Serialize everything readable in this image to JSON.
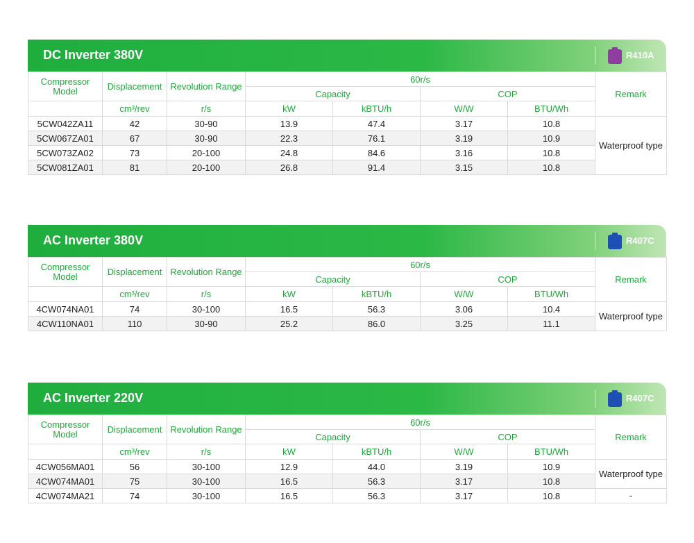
{
  "tables": [
    {
      "title": "DC Inverter 380V",
      "refrigerant": "R410A",
      "refrigerant_color": "#8e3e9e",
      "headers": {
        "compressor_model": "Compressor Model",
        "displacement": "Displacement",
        "revolution_range": "Revolution Range",
        "speed": "60r/s",
        "capacity": "Capacity",
        "cop": "COP",
        "remark": "Remark",
        "units": [
          "cm³/rev",
          "r/s",
          "kW",
          "kBTU/h",
          "W/W",
          "BTU/Wh"
        ]
      },
      "rows": [
        [
          "5CW042ZA11",
          "42",
          "30-90",
          "13.9",
          "47.4",
          "3.17",
          "10.8"
        ],
        [
          "5CW067ZA01",
          "67",
          "30-90",
          "22.3",
          "76.1",
          "3.19",
          "10.9"
        ],
        [
          "5CW073ZA02",
          "73",
          "20-100",
          "24.8",
          "84.6",
          "3.16",
          "10.8"
        ],
        [
          "5CW081ZA01",
          "81",
          "20-100",
          "26.8",
          "91.4",
          "3.15",
          "10.8"
        ]
      ],
      "remarks": [
        "Waterproof type"
      ]
    },
    {
      "title": "AC Inverter 380V",
      "refrigerant": "R407C",
      "refrigerant_color": "#1e4fb4",
      "headers": {
        "compressor_model": "Compressor Model",
        "displacement": "Displacement",
        "revolution_range": "Revolution Range",
        "speed": "60r/s",
        "capacity": "Capacity",
        "cop": "COP",
        "remark": "Remark",
        "units": [
          "cm³/rev",
          "r/s",
          "kW",
          "kBTU/h",
          "W/W",
          "BTU/Wh"
        ]
      },
      "rows": [
        [
          "4CW074NA01",
          "74",
          "30-100",
          "16.5",
          "56.3",
          "3.06",
          "10.4"
        ],
        [
          "4CW110NA01",
          "110",
          "30-90",
          "25.2",
          "86.0",
          "3.25",
          "11.1"
        ]
      ],
      "remarks": [
        "Waterproof type"
      ]
    },
    {
      "title": "AC Inverter 220V",
      "refrigerant": "R407C",
      "refrigerant_color": "#1e4fb4",
      "headers": {
        "compressor_model": "Compressor Model",
        "displacement": "Displacement",
        "revolution_range": "Revolution Range",
        "speed": "60r/s",
        "capacity": "Capacity",
        "cop": "COP",
        "remark": "Remark",
        "units": [
          "cm³/rev",
          "r/s",
          "kW",
          "kBTU/h",
          "W/W",
          "BTU/Wh"
        ]
      },
      "rows": [
        [
          "4CW056MA01",
          "56",
          "30-100",
          "12.9",
          "44.0",
          "3.19",
          "10.9"
        ],
        [
          "4CW074MA01",
          "75",
          "30-100",
          "16.5",
          "56.3",
          "3.17",
          "10.8"
        ],
        [
          "4CW074MA21",
          "74",
          "30-100",
          "16.5",
          "56.3",
          "3.17",
          "10.8"
        ]
      ],
      "remarks": [
        "Waterproof type",
        "-"
      ]
    }
  ]
}
